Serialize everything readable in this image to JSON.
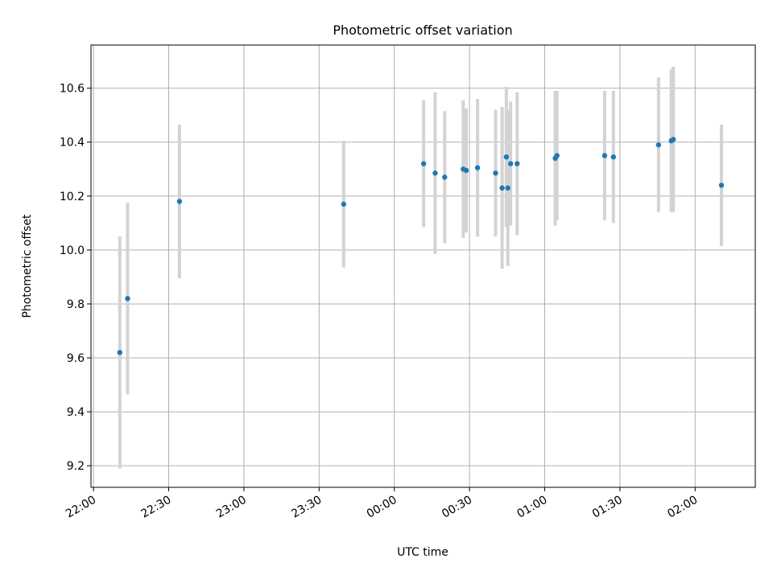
{
  "chart_data": {
    "type": "scatter",
    "title": "Photometric offset variation",
    "xlabel": "UTC time",
    "ylabel": "Photometric offset",
    "x_unit": "UTC clock time (HH:MM), night crossing midnight",
    "xlim": [
      "21:59",
      "02:24"
    ],
    "ylim": [
      9.12,
      10.76
    ],
    "x_ticks": [
      "22:00",
      "22:30",
      "23:00",
      "23:30",
      "00:00",
      "00:30",
      "01:00",
      "01:30",
      "02:00"
    ],
    "y_ticks": [
      9.2,
      9.4,
      9.6,
      9.8,
      10.0,
      10.2,
      10.4,
      10.6
    ],
    "grid": true,
    "colors": {
      "points": "#1f77b4",
      "errorbars": "#d3d3d3",
      "grid": "#b0b0b0"
    },
    "points": [
      {
        "x": "22:10.5",
        "y": 9.62,
        "err": 0.43
      },
      {
        "x": "22:13.6",
        "y": 9.82,
        "err": 0.355
      },
      {
        "x": "22:34.3",
        "y": 10.18,
        "err": 0.285
      },
      {
        "x": "23:39.8",
        "y": 10.17,
        "err": 0.235
      },
      {
        "x": "00:11.7",
        "y": 10.32,
        "err": 0.235
      },
      {
        "x": "00:16.3",
        "y": 10.285,
        "err": 0.3
      },
      {
        "x": "00:20.1",
        "y": 10.27,
        "err": 0.245
      },
      {
        "x": "00:27.5",
        "y": 10.3,
        "err": 0.255
      },
      {
        "x": "00:28.7",
        "y": 10.295,
        "err": 0.23
      },
      {
        "x": "00:33.2",
        "y": 10.305,
        "err": 0.255
      },
      {
        "x": "00:40.4",
        "y": 10.285,
        "err": 0.235
      },
      {
        "x": "00:43.0",
        "y": 10.23,
        "err": 0.3
      },
      {
        "x": "00:44.7",
        "y": 10.345,
        "err": 0.26
      },
      {
        "x": "00:45.3",
        "y": 10.23,
        "err": 0.29
      },
      {
        "x": "00:46.4",
        "y": 10.32,
        "err": 0.23
      },
      {
        "x": "00:49.0",
        "y": 10.32,
        "err": 0.265
      },
      {
        "x": "01:04.2",
        "y": 10.34,
        "err": 0.25
      },
      {
        "x": "01:04.9",
        "y": 10.35,
        "err": 0.24
      },
      {
        "x": "01:23.9",
        "y": 10.35,
        "err": 0.24
      },
      {
        "x": "01:27.4",
        "y": 10.345,
        "err": 0.245
      },
      {
        "x": "01:45.4",
        "y": 10.39,
        "err": 0.25
      },
      {
        "x": "01:50.5",
        "y": 10.405,
        "err": 0.265
      },
      {
        "x": "01:51.3",
        "y": 10.41,
        "err": 0.27
      },
      {
        "x": "02:10.5",
        "y": 10.24,
        "err": 0.225
      }
    ]
  }
}
